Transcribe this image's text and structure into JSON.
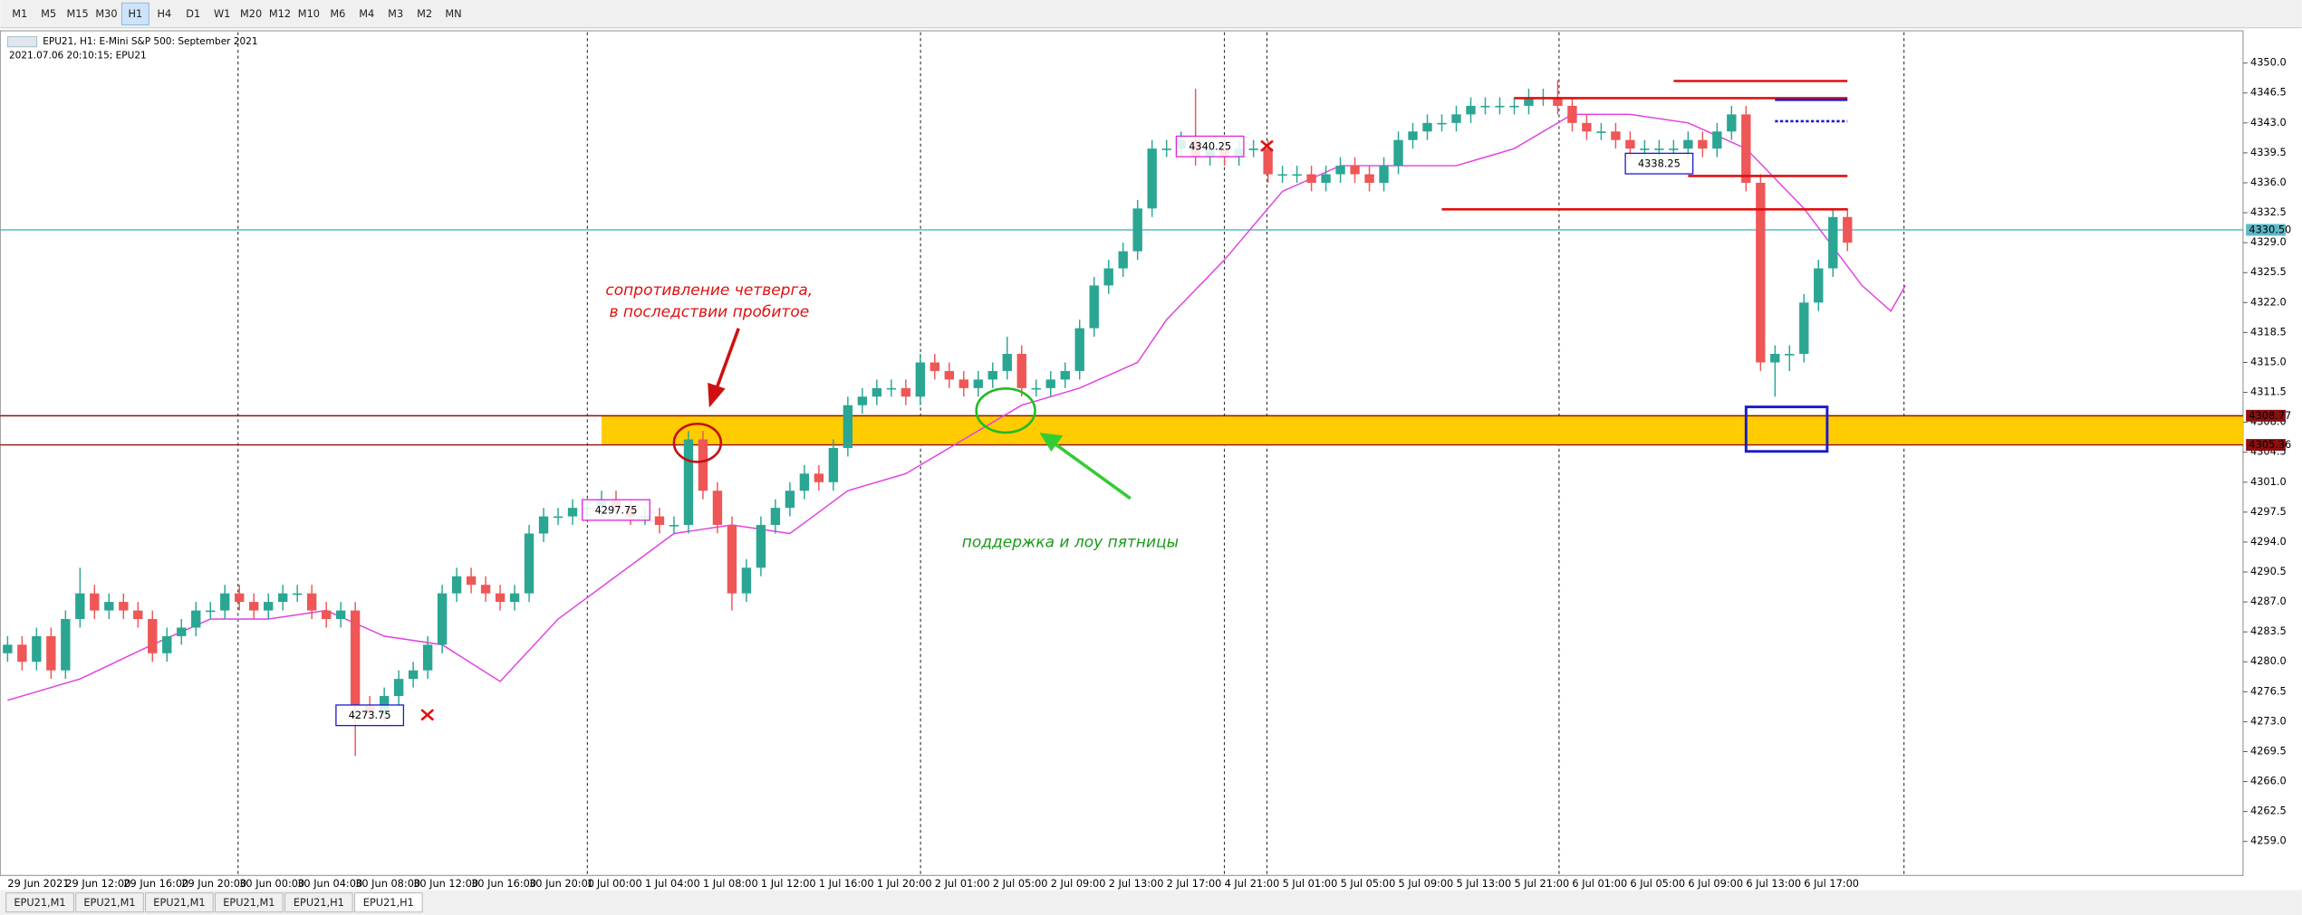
{
  "toolbar": {
    "timeframes": [
      "M1",
      "M5",
      "M15",
      "M30",
      "H1",
      "H4",
      "D1",
      "W1",
      "M20",
      "M12",
      "M10",
      "M6",
      "M4",
      "M3",
      "M2",
      "MN"
    ]
  },
  "chart_data": {
    "type": "candlestick",
    "title": "EPU21, H1:  E-Mini S&P 500: September 2021",
    "subtitle": "2021.07.06 20:10:15; EPU21",
    "categories": [
      "29 Jun 2021",
      null,
      null,
      null,
      "29 Jun 12:00",
      null,
      null,
      null,
      "29 Jun 16:00",
      null,
      null,
      null,
      "29 Jun 20:00",
      null,
      null,
      null,
      "30 Jun 00:00",
      null,
      null,
      null,
      "30 Jun 04:00",
      null,
      null,
      null,
      "30 Jun 08:00",
      null,
      null,
      null,
      "30 Jun 12:00",
      null,
      null,
      null,
      "30 Jun 16:00",
      null,
      null,
      null,
      "30 Jun 20:00",
      null,
      null,
      null,
      "1 Jul 00:00",
      null,
      null,
      null,
      "1 Jul 04:00",
      null,
      null,
      null,
      "1 Jul 08:00",
      null,
      null,
      null,
      "1 Jul 12:00",
      null,
      null,
      null,
      "1 Jul 16:00",
      null,
      null,
      null,
      "1 Jul 20:00",
      null,
      null,
      null,
      "2 Jul 01:00",
      null,
      null,
      null,
      "2 Jul 05:00",
      null,
      null,
      null,
      "2 Jul 09:00",
      null,
      null,
      null,
      "2 Jul 13:00",
      null,
      null,
      null,
      "2 Jul 17:00",
      null,
      null,
      null,
      "4 Jul 21:00",
      null,
      null,
      null,
      "5 Jul 01:00",
      null,
      null,
      null,
      "5 Jul 05:00",
      null,
      null,
      null,
      "5 Jul 09:00",
      null,
      null,
      null,
      "5 Jul 13:00",
      null,
      null,
      null,
      "5 Jul 21:00",
      null,
      null,
      null,
      "6 Jul 01:00",
      null,
      null,
      null,
      "6 Jul 05:00",
      null,
      null,
      null,
      "6 Jul 09:00",
      null,
      null,
      null,
      "6 Jul 13:00",
      null,
      null,
      null,
      "6 Jul 17:00",
      null,
      null,
      null
    ],
    "open": [
      4281,
      4282,
      4280,
      4283,
      4279,
      4285,
      4288,
      4286,
      4287,
      4286,
      4285,
      4281,
      4283,
      4284,
      4286,
      4286,
      4288,
      4287,
      4286,
      4287,
      4288,
      4288,
      4286,
      4285,
      4286,
      4275,
      4274,
      4276,
      4278,
      4279,
      4282,
      4288,
      4290,
      4289,
      4288,
      4287,
      4288,
      4295,
      4297,
      4297,
      4298,
      4298,
      4299,
      4298,
      4297,
      4297,
      4296,
      4296,
      4306,
      4300,
      4296,
      4288,
      4291,
      4296,
      4298,
      4300,
      4302,
      4301,
      4305,
      4310,
      4311,
      4312,
      4312,
      4311,
      4315,
      4314,
      4313,
      4312,
      4313,
      4314,
      4316,
      4312,
      4312,
      4313,
      4314,
      4319,
      4324,
      4326,
      4328,
      4333,
      4340,
      4340,
      4341,
      4339,
      4340,
      4339,
      4340,
      4340,
      4337,
      4337,
      4337,
      4336,
      4337,
      4338,
      4337,
      4336,
      4338,
      4341,
      4342,
      4343,
      4343,
      4344,
      4345,
      4345,
      4345,
      4345,
      4346,
      4346,
      4345,
      4343,
      4342,
      4342,
      4341,
      4340,
      4340,
      4340,
      4340,
      4341,
      4340,
      4342,
      4344,
      4336,
      4315,
      4316,
      4316,
      4322,
      4326,
      4332
    ],
    "high": [
      4283,
      4283,
      4284,
      4284,
      4286,
      4291,
      4289,
      4288,
      4288,
      4287,
      4286,
      4284,
      4285,
      4287,
      4287,
      4289,
      4289,
      4288,
      4288,
      4289,
      4289,
      4289,
      4287,
      4287,
      4287,
      4276,
      4277,
      4279,
      4280,
      4283,
      4289,
      4291,
      4291,
      4290,
      4289,
      4289,
      4296,
      4298,
      4298,
      4299,
      4299,
      4300,
      4300,
      4299,
      4298,
      4298,
      4297,
      4307,
      4307,
      4301,
      4297,
      4292,
      4297,
      4299,
      4301,
      4303,
      4303,
      4306,
      4311,
      4312,
      4313,
      4313,
      4313,
      4316,
      4316,
      4315,
      4314,
      4314,
      4315,
      4318,
      4317,
      4313,
      4314,
      4315,
      4320,
      4325,
      4327,
      4329,
      4334,
      4341,
      4341,
      4342,
      4347,
      4341,
      4341,
      4341,
      4341,
      4341,
      4338,
      4338,
      4338,
      4338,
      4339,
      4339,
      4338,
      4339,
      4342,
      4343,
      4344,
      4344,
      4345,
      4346,
      4346,
      4346,
      4346,
      4347,
      4347,
      4348,
      4346,
      4344,
      4343,
      4343,
      4342,
      4341,
      4341,
      4341,
      4342,
      4342,
      4343,
      4345,
      4345,
      4337,
      4317,
      4317,
      4323,
      4327,
      4333,
      4333
    ],
    "low": [
      4280,
      4279,
      4279,
      4278,
      4278,
      4284,
      4285,
      4285,
      4285,
      4284,
      4280,
      4280,
      4282,
      4283,
      4285,
      4285,
      4286,
      4285,
      4285,
      4286,
      4287,
      4285,
      4284,
      4284,
      4269,
      4273,
      4273,
      4275,
      4277,
      4278,
      4281,
      4287,
      4288,
      4287,
      4286,
      4286,
      4287,
      4294,
      4296,
      4296,
      4297,
      4297,
      4297,
      4296,
      4296,
      4295,
      4295,
      4295,
      4299,
      4295,
      4286,
      4287,
      4290,
      4295,
      4297,
      4299,
      4300,
      4300,
      4304,
      4309,
      4310,
      4311,
      4310,
      4310,
      4313,
      4312,
      4311,
      4311,
      4312,
      4313,
      4311,
      4311,
      4311,
      4312,
      4313,
      4318,
      4323,
      4325,
      4327,
      4332,
      4339,
      4339,
      4338,
      4338,
      4338,
      4338,
      4339,
      4336,
      4336,
      4336,
      4335,
      4335,
      4336,
      4336,
      4335,
      4335,
      4337,
      4340,
      4341,
      4342,
      4342,
      4343,
      4344,
      4344,
      4344,
      4344,
      4345,
      4344,
      4342,
      4341,
      4341,
      4340,
      4339,
      4339,
      4339,
      4339,
      4339,
      4339,
      4339,
      4341,
      4335,
      4314,
      4311,
      4314,
      4315,
      4321,
      4325,
      4328
    ],
    "close": [
      4282,
      4280,
      4283,
      4279,
      4285,
      4288,
      4286,
      4287,
      4286,
      4285,
      4281,
      4283,
      4284,
      4286,
      4286,
      4288,
      4287,
      4286,
      4287,
      4288,
      4288,
      4286,
      4285,
      4286,
      4275,
      4274,
      4276,
      4278,
      4279,
      4282,
      4288,
      4290,
      4289,
      4288,
      4287,
      4288,
      4295,
      4297,
      4297,
      4298,
      4298,
      4299,
      4298,
      4297,
      4297,
      4296,
      4296,
      4306,
      4300,
      4296,
      4288,
      4291,
      4296,
      4298,
      4300,
      4302,
      4301,
      4305,
      4310,
      4311,
      4312,
      4312,
      4311,
      4315,
      4314,
      4313,
      4312,
      4313,
      4314,
      4316,
      4312,
      4312,
      4313,
      4314,
      4319,
      4324,
      4326,
      4328,
      4333,
      4340,
      4340,
      4341,
      4339,
      4340,
      4339,
      4340,
      4340,
      4337,
      4337,
      4337,
      4336,
      4337,
      4338,
      4337,
      4336,
      4338,
      4341,
      4342,
      4343,
      4343,
      4344,
      4345,
      4345,
      4345,
      4345,
      4346,
      4346,
      4345,
      4343,
      4342,
      4342,
      4341,
      4340,
      4340,
      4340,
      4340,
      4341,
      4340,
      4342,
      4344,
      4336,
      4315,
      4316,
      4316,
      4322,
      4326,
      4332,
      4329
    ],
    "up_color": "#2aa693",
    "down_color": "#ef5656",
    "ylim": [
      4255.2,
      4353.6
    ],
    "yticks": [
      {
        "value": 4350,
        "label": "4350.0"
      },
      {
        "value": 4346.5,
        "label": "4346.5"
      },
      {
        "value": 4343,
        "label": "4343.0"
      },
      {
        "value": 4339.5,
        "label": "4339.5"
      },
      {
        "value": 4336,
        "label": "4336.0"
      },
      {
        "value": 4332.5,
        "label": "4332.5"
      },
      {
        "value": 4329,
        "label": "4329.0"
      },
      {
        "value": 4325.5,
        "label": "4325.5"
      },
      {
        "value": 4322,
        "label": "4322.0"
      },
      {
        "value": 4318.5,
        "label": "4318.5"
      },
      {
        "value": 4315,
        "label": "4315.0"
      },
      {
        "value": 4311.5,
        "label": "4311.5"
      },
      {
        "value": 4308,
        "label": "4308.0"
      },
      {
        "value": 4304.5,
        "label": "4304.5"
      },
      {
        "value": 4301,
        "label": "4301.0"
      },
      {
        "value": 4297.5,
        "label": "4297.5"
      },
      {
        "value": 4294,
        "label": "4294.0"
      },
      {
        "value": 4290.5,
        "label": "4290.5"
      },
      {
        "value": 4287,
        "label": "4287.0"
      },
      {
        "value": 4283.5,
        "label": "4283.5"
      },
      {
        "value": 4280,
        "label": "4280.0"
      },
      {
        "value": 4276.5,
        "label": "4276.5"
      },
      {
        "value": 4273,
        "label": "4273.0"
      },
      {
        "value": 4269.5,
        "label": "4269.5"
      },
      {
        "value": 4266,
        "label": "4266.0"
      },
      {
        "value": 4262.5,
        "label": "4262.5"
      },
      {
        "value": 4259,
        "label": "4259.0"
      }
    ],
    "moving_average": {
      "color": "#e040e0",
      "x": [
        0,
        5,
        10,
        14,
        18,
        22,
        26,
        30,
        34,
        38,
        42,
        46,
        50,
        54,
        58,
        62,
        66,
        70,
        74,
        78,
        80,
        84,
        88,
        92,
        96,
        100,
        104,
        108,
        112,
        116,
        120,
        124,
        128,
        130,
        131
      ],
      "values": [
        4275.5,
        4278,
        4282,
        4285,
        4285,
        4286,
        4283,
        4282,
        4277.7,
        4285,
        4290,
        4295,
        4296,
        4295,
        4300,
        4302,
        4306,
        4310,
        4312,
        4315,
        4320,
        4327,
        4335,
        4338,
        4338,
        4338,
        4340,
        4344,
        4344,
        4343,
        4340,
        4333,
        4324,
        4321,
        4324
      ]
    },
    "levels": [
      {
        "value": 4330.5,
        "label": "4330.50",
        "color": "#5fb8c8"
      },
      {
        "value": 4308.77,
        "label": "4308.77",
        "color": "#8b1010"
      },
      {
        "value": 4305.36,
        "label": "4305.36",
        "color": "#8b1010"
      }
    ],
    "zone": {
      "from": 41,
      "color": "#ffcc00"
    },
    "segments": [
      {
        "value": 4347.9,
        "from": 115,
        "to": 127,
        "color": "#e01010",
        "dash": false
      },
      {
        "value": 4345.9,
        "from": 104,
        "to": 127,
        "color": "#e01010",
        "dash": false
      },
      {
        "value": 4345.7,
        "from": 122,
        "to": 127,
        "color": "#1a1ad0",
        "dash": false
      },
      {
        "value": 4343.2,
        "from": 122,
        "to": 127,
        "color": "#1a1ad0",
        "dash": true
      },
      {
        "value": 4336.8,
        "from": 116,
        "to": 127,
        "color": "#e01010",
        "dash": false
      },
      {
        "value": 4332.9,
        "from": 99,
        "to": 127,
        "color": "#e01010",
        "dash": false
      }
    ],
    "price_labels": [
      {
        "index": 25,
        "value": 4273.75,
        "label": "4273.75",
        "color": "#1a1ad0"
      },
      {
        "index": 42,
        "value": 4297.75,
        "label": "4297.75",
        "color": "#e020e0"
      },
      {
        "index": 114,
        "value": 4338.25,
        "label": "4338.25",
        "color": "#1a1ad0"
      },
      {
        "index": 83,
        "value": 4340.25,
        "label": "4340.25",
        "color": "#e020e0"
      }
    ],
    "rects": [
      {
        "from": 120,
        "to": 125.6,
        "top": 4309.8,
        "bottom": 4304.6,
        "color": "#1a1ad0"
      }
    ],
    "annotations": [
      "сопротивление четверга,",
      "в последствии пробитое",
      "поддержка и лоу пятницы"
    ]
  },
  "tabs": [
    "EPU21,M1",
    "EPU21,M1",
    "EPU21,M1",
    "EPU21,M1",
    "EPU21,H1",
    "EPU21,H1"
  ]
}
